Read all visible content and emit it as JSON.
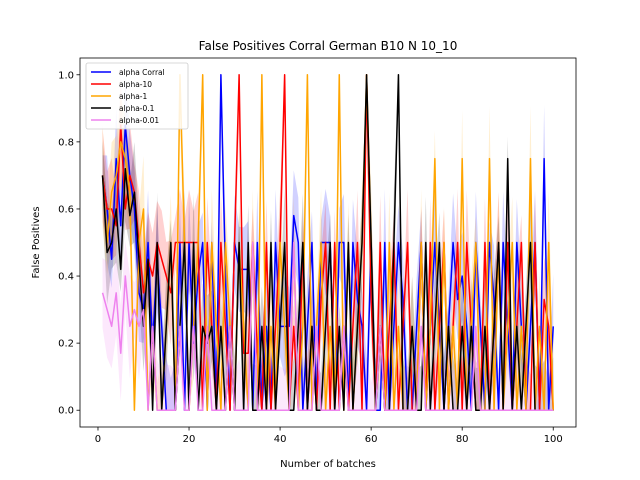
{
  "chart_data": {
    "type": "line",
    "title": "False Positives Corral German B10 N 10_10",
    "xlabel": "Number of batches",
    "ylabel": "False Positives",
    "xlim": [
      -3.95,
      105
    ],
    "ylim": [
      -0.05,
      1.05
    ],
    "xticks": [
      0,
      20,
      40,
      60,
      80,
      100
    ],
    "yticks": [
      0.0,
      0.2,
      0.4,
      0.6,
      0.8,
      1.0
    ],
    "xtick_labels": [
      "0",
      "20",
      "40",
      "60",
      "80",
      "100"
    ],
    "ytick_labels": [
      "0.0",
      "0.2",
      "0.4",
      "0.6",
      "0.8",
      "1.0"
    ],
    "legend_position": "top-left",
    "grid": false,
    "series": [
      {
        "name": "alpha Corral",
        "color": "#0000ff",
        "x": [
          1,
          2,
          3,
          4,
          5,
          6,
          7,
          8,
          9,
          10,
          11,
          12,
          13,
          14,
          15,
          16,
          17,
          18,
          19,
          20,
          21,
          22,
          23,
          24,
          25,
          26,
          27,
          28,
          29,
          30,
          31,
          32,
          33,
          34,
          35,
          36,
          37,
          38,
          39,
          40,
          41,
          42,
          43,
          44,
          45,
          46,
          47,
          48,
          49,
          50,
          51,
          52,
          53,
          54,
          55,
          56,
          57,
          58,
          59,
          60,
          61,
          62,
          63,
          64,
          65,
          66,
          67,
          68,
          69,
          70,
          71,
          72,
          73,
          74,
          75,
          76,
          77,
          78,
          79,
          80,
          81,
          82,
          83,
          84,
          85,
          86,
          87,
          88,
          89,
          90,
          91,
          92,
          93,
          94,
          95,
          96,
          97,
          98,
          99,
          100
        ],
        "y": [
          0.7,
          0.6,
          0.45,
          0.75,
          0.55,
          0.85,
          0.7,
          0.6,
          0.35,
          0.3,
          0.5,
          0.2,
          0.45,
          0.25,
          0.0,
          0.0,
          0.0,
          0.5,
          0.0,
          0.5,
          0.2,
          0.4,
          0.5,
          0.0,
          0.5,
          0.0,
          1.0,
          0.4,
          0.0,
          0.5,
          0.42,
          0.42,
          0.42,
          0.0,
          0.5,
          0.0,
          0.25,
          0.0,
          0.5,
          0.25,
          0.25,
          0.25,
          0.58,
          0.5,
          0.0,
          0.25,
          0.5,
          0.0,
          0.5,
          0.5,
          0.5,
          0.0,
          0.5,
          0.5,
          0.0,
          0.5,
          0.33,
          0.25,
          0.0,
          0.5,
          0.0,
          0.0,
          0.5,
          0.0,
          0.25,
          0.5,
          0.33,
          0.0,
          0.0,
          0.25,
          0.5,
          0.0,
          0.25,
          0.5,
          0.25,
          0.0,
          0.25,
          0.5,
          0.33,
          0.4,
          0.25,
          0.0,
          0.5,
          0.25,
          0.0,
          0.5,
          0.33,
          0.0,
          0.5,
          0.25,
          0.0,
          0.5,
          0.25,
          0.0,
          0.25,
          0.5,
          0.0,
          0.75,
          0.0,
          0.25
        ]
      },
      {
        "name": "alpha-10",
        "color": "#ff0000",
        "x": [
          1,
          2,
          3,
          4,
          5,
          6,
          7,
          8,
          9,
          10,
          11,
          12,
          13,
          14,
          15,
          16,
          17,
          18,
          19,
          20,
          21,
          22,
          23,
          24,
          25,
          26,
          27,
          28,
          29,
          30,
          31,
          32,
          33,
          34,
          35,
          36,
          37,
          38,
          39,
          40,
          41,
          42,
          43,
          44,
          45,
          46,
          47,
          48,
          49,
          50,
          51,
          52,
          53,
          54,
          55,
          56,
          57,
          58,
          59,
          60,
          61,
          62,
          63,
          64,
          65,
          66,
          67,
          68,
          69,
          70,
          71,
          72,
          73,
          74,
          75,
          76,
          77,
          78,
          79,
          80,
          81,
          82,
          83,
          84,
          85,
          86,
          87,
          88,
          89,
          90,
          91,
          92,
          93,
          94,
          95,
          96,
          97,
          98,
          99,
          100
        ],
        "y": [
          0.7,
          0.6,
          0.6,
          0.55,
          0.85,
          0.6,
          0.7,
          0.65,
          0.5,
          0.35,
          0.45,
          0.4,
          0.5,
          0.45,
          0.4,
          0.35,
          0.5,
          0.5,
          0.5,
          0.5,
          0.5,
          0.5,
          0.0,
          0.5,
          0.25,
          0.0,
          0.5,
          0.25,
          0.0,
          0.5,
          1.0,
          0.17,
          0.17,
          0.5,
          0.17,
          0.0,
          0.5,
          0.0,
          0.25,
          0.5,
          1.0,
          0.0,
          0.25,
          0.0,
          0.5,
          0.0,
          0.25,
          0.0,
          0.33,
          0.5,
          0.0,
          0.5,
          0.0,
          0.25,
          0.0,
          0.25,
          0.5,
          0.0,
          1.0,
          0.33,
          0.0,
          0.5,
          0.0,
          0.25,
          0.5,
          0.0,
          0.25,
          0.5,
          0.0,
          0.0,
          0.5,
          0.0,
          0.5,
          0.0,
          0.25,
          0.5,
          0.0,
          0.25,
          0.5,
          0.0,
          0.5,
          0.25,
          0.0,
          0.0,
          0.5,
          0.0,
          0.25,
          0.5,
          0.0,
          0.5,
          0.0,
          0.25,
          0.5,
          0.0,
          0.0,
          0.5,
          0.0,
          0.33,
          0.25,
          0.0
        ]
      },
      {
        "name": "alpha-1",
        "color": "#ffa500",
        "x": [
          1,
          2,
          3,
          4,
          5,
          6,
          7,
          8,
          9,
          10,
          11,
          12,
          13,
          14,
          15,
          16,
          17,
          18,
          19,
          20,
          21,
          22,
          23,
          24,
          25,
          26,
          27,
          28,
          29,
          30,
          31,
          32,
          33,
          34,
          35,
          36,
          37,
          38,
          39,
          40,
          41,
          42,
          43,
          44,
          45,
          46,
          47,
          48,
          49,
          50,
          51,
          52,
          53,
          54,
          55,
          56,
          57,
          58,
          59,
          60,
          61,
          62,
          63,
          64,
          65,
          66,
          67,
          68,
          69,
          70,
          71,
          72,
          73,
          74,
          75,
          76,
          77,
          78,
          79,
          80,
          81,
          82,
          83,
          84,
          85,
          86,
          87,
          88,
          89,
          90,
          91,
          92,
          93,
          94,
          95,
          96,
          97,
          98,
          99,
          100
        ],
        "y": [
          0.7,
          0.5,
          0.65,
          0.7,
          0.8,
          0.75,
          0.65,
          0.0,
          0.5,
          0.6,
          0.0,
          0.25,
          0.0,
          0.0,
          0.25,
          0.5,
          0.0,
          1.0,
          0.5,
          0.0,
          0.25,
          0.5,
          1.0,
          0.0,
          0.5,
          0.25,
          0.0,
          0.5,
          0.25,
          0.0,
          0.5,
          0.25,
          0.0,
          0.5,
          0.0,
          1.0,
          0.0,
          0.25,
          0.0,
          0.5,
          0.25,
          0.0,
          0.5,
          0.0,
          0.25,
          1.0,
          0.0,
          0.25,
          0.5,
          0.0,
          0.25,
          0.0,
          1.0,
          0.0,
          0.5,
          0.0,
          0.25,
          0.5,
          1.0,
          0.5,
          0.0,
          0.25,
          0.0,
          0.5,
          0.0,
          0.25,
          0.0,
          0.0,
          0.25,
          0.0,
          0.5,
          0.0,
          0.25,
          0.75,
          0.0,
          0.5,
          0.0,
          0.25,
          0.0,
          0.75,
          0.0,
          0.25,
          0.5,
          0.0,
          0.0,
          0.75,
          0.0,
          0.5,
          0.0,
          0.25,
          0.5,
          0.0,
          0.25,
          0.0,
          0.75,
          0.0,
          0.25,
          0.0,
          0.5,
          0.0
        ]
      },
      {
        "name": "alpha-0.1",
        "color": "#000000",
        "x": [
          1,
          2,
          3,
          4,
          5,
          6,
          7,
          8,
          9,
          10,
          11,
          12,
          13,
          14,
          15,
          16,
          17,
          18,
          19,
          20,
          21,
          22,
          23,
          24,
          25,
          26,
          27,
          28,
          29,
          30,
          31,
          32,
          33,
          34,
          35,
          36,
          37,
          38,
          39,
          40,
          41,
          42,
          43,
          44,
          45,
          46,
          47,
          48,
          49,
          50,
          51,
          52,
          53,
          54,
          55,
          56,
          57,
          58,
          59,
          60,
          61,
          62,
          63,
          64,
          65,
          66,
          67,
          68,
          69,
          70,
          71,
          72,
          73,
          74,
          75,
          76,
          77,
          78,
          79,
          80,
          81,
          82,
          83,
          84,
          85,
          86,
          87,
          88,
          89,
          90,
          91,
          92,
          93,
          94,
          95,
          96,
          97,
          98,
          99,
          100
        ],
        "y": [
          0.7,
          0.47,
          0.5,
          0.6,
          0.42,
          0.72,
          0.58,
          0.65,
          0.45,
          0.25,
          0.45,
          0.0,
          0.5,
          0.0,
          0.25,
          0.5,
          0.0,
          0.25,
          0.5,
          0.0,
          0.5,
          0.0,
          0.25,
          0.2,
          0.25,
          0.0,
          0.25,
          0.0,
          0.25,
          0.0,
          0.5,
          0.0,
          0.5,
          0.0,
          0.0,
          0.25,
          0.0,
          0.5,
          0.0,
          0.25,
          0.5,
          0.0,
          0.0,
          0.25,
          0.5,
          0.0,
          0.25,
          0.0,
          0.0,
          0.25,
          0.5,
          0.0,
          0.25,
          0.0,
          0.5,
          0.0,
          0.25,
          0.5,
          1.0,
          0.5,
          0.0,
          0.25,
          0.0,
          0.0,
          0.5,
          1.0,
          0.0,
          0.0,
          0.25,
          0.0,
          0.0,
          0.5,
          0.0,
          0.25,
          0.5,
          0.0,
          0.25,
          0.0,
          0.0,
          0.25,
          0.0,
          0.25,
          0.0,
          0.0,
          0.25,
          0.0,
          0.25,
          0.5,
          0.0,
          0.75,
          0.0,
          0.25,
          0.0,
          0.25,
          0.5,
          0.0,
          0.0,
          0.0,
          0.0,
          0.0
        ]
      },
      {
        "name": "alpha-0.01",
        "color": "#ee82ee",
        "x": [
          1,
          2,
          3,
          4,
          5,
          6,
          7,
          8,
          9,
          10,
          11,
          12,
          13,
          14,
          15,
          16,
          17,
          18,
          19,
          20,
          21,
          22,
          23,
          24,
          25,
          26,
          27,
          28,
          29,
          30,
          31,
          32,
          33,
          34,
          35,
          36,
          37,
          38,
          39,
          40,
          41,
          42,
          43,
          44,
          45,
          46,
          47,
          48,
          49,
          50,
          51,
          52,
          53,
          54,
          55,
          56,
          57,
          58,
          59,
          60,
          61,
          62,
          63,
          64,
          65,
          66,
          67,
          68,
          69,
          70,
          71,
          72,
          73,
          74,
          75,
          76,
          77,
          78,
          79,
          80,
          81,
          82,
          83,
          84,
          85,
          86,
          87,
          88,
          89,
          90,
          91,
          92,
          93,
          94,
          95,
          96,
          97,
          98,
          99,
          100
        ],
        "y": [
          0.35,
          0.3,
          0.25,
          0.35,
          0.17,
          0.4,
          0.25,
          0.3,
          0.25,
          0.3,
          0.0,
          0.25,
          0.0,
          0.0,
          0.0,
          0.0,
          0.0,
          0.25,
          0.0,
          0.0,
          0.25,
          0.0,
          0.0,
          0.25,
          0.0,
          0.0,
          0.0,
          0.0,
          0.25,
          0.0,
          0.0,
          0.0,
          0.0,
          0.5,
          0.0,
          0.0,
          0.0,
          0.0,
          0.0,
          0.0,
          0.0,
          0.0,
          0.5,
          0.0,
          0.0,
          0.0,
          0.0,
          0.25,
          0.0,
          0.0,
          0.0,
          0.0,
          0.0,
          0.25,
          0.0,
          0.0,
          0.0,
          0.0,
          0.0,
          0.0,
          0.0,
          0.25,
          0.0,
          0.0,
          0.0,
          0.0,
          0.0,
          0.0,
          0.0,
          0.0,
          0.25,
          0.0,
          0.0,
          0.0,
          0.0,
          0.0,
          0.0,
          0.0,
          0.0,
          0.0,
          0.0,
          0.0,
          0.25,
          0.0,
          0.0,
          0.0,
          0.0,
          0.0,
          0.0,
          0.0,
          0.0,
          0.0,
          0.0,
          0.0,
          0.0,
          0.0,
          0.0,
          0.0,
          0.0,
          0.0
        ]
      }
    ]
  }
}
